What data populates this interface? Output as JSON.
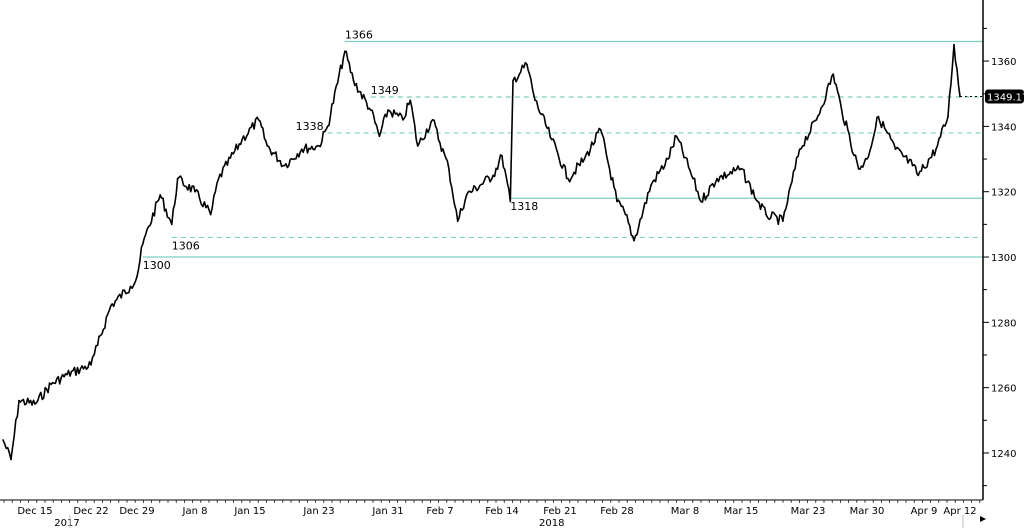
{
  "chart_data": {
    "type": "line",
    "title": "",
    "xlabel": "",
    "ylabel": "",
    "ylim": [
      1225.6,
      1378.7
    ],
    "y_ticks": [
      1240,
      1260,
      1280,
      1300,
      1320,
      1340,
      1360
    ],
    "y_axis_side": "right",
    "grid": false,
    "x_ticks": [
      {
        "label": "Dec 15",
        "date": "2017-12-15"
      },
      {
        "label": "Dec 22",
        "date": "2017-12-22"
      },
      {
        "label": "Dec 29",
        "date": "2017-12-29"
      },
      {
        "label": "Jan 8",
        "date": "2018-01-08"
      },
      {
        "label": "Jan 15",
        "date": "2018-01-15"
      },
      {
        "label": "Jan 23",
        "date": "2018-01-23"
      },
      {
        "label": "Jan 31",
        "date": "2018-01-31"
      },
      {
        "label": "Feb 7",
        "date": "2018-02-07"
      },
      {
        "label": "Feb 14",
        "date": "2018-02-14"
      },
      {
        "label": "Feb 21",
        "date": "2018-02-21"
      },
      {
        "label": "Feb 28",
        "date": "2018-02-28"
      },
      {
        "label": "Mar 8",
        "date": "2018-03-08"
      },
      {
        "label": "Mar 15",
        "date": "2018-03-15"
      },
      {
        "label": "Mar 23",
        "date": "2018-03-23"
      },
      {
        "label": "Mar 30",
        "date": "2018-03-30"
      },
      {
        "label": "Apr 9",
        "date": "2018-04-09"
      },
      {
        "label": "Apr 12",
        "date": "2018-04-12"
      }
    ],
    "year_labels": [
      {
        "label": "2017",
        "date": "2017-12-19"
      },
      {
        "label": "2018",
        "date": "2018-02-20"
      }
    ],
    "last_value_label": "1349.17",
    "line_color": "#000000",
    "level_color": "#7fcfc0",
    "levels": [
      {
        "value": 1366,
        "label": "1366",
        "style": "solid",
        "from": "2018-01-26"
      },
      {
        "value": 1349,
        "label": "1349",
        "style": "dashed",
        "from": "2018-01-29"
      },
      {
        "value": 1338,
        "label": "1338",
        "style": "dashed",
        "from": "2018-01-24"
      },
      {
        "value": 1318,
        "label": "1318",
        "style": "solid",
        "from": "2018-02-15"
      },
      {
        "value": 1306,
        "label": "1306",
        "style": "dashed",
        "from": "2018-01-04"
      },
      {
        "value": 1300,
        "label": "1300",
        "style": "solid",
        "from": "2017-12-30"
      }
    ],
    "series": [
      {
        "x": "2017-12-11",
        "y": 1244
      },
      {
        "x": "2017-12-12",
        "y": 1238
      },
      {
        "x": "2017-12-13",
        "y": 1256
      },
      {
        "x": "2017-12-15",
        "y": 1255
      },
      {
        "x": "2017-12-17",
        "y": 1261
      },
      {
        "x": "2017-12-19",
        "y": 1264
      },
      {
        "x": "2017-12-22",
        "y": 1267
      },
      {
        "x": "2017-12-23",
        "y": 1273
      },
      {
        "x": "2017-12-25",
        "y": 1285
      },
      {
        "x": "2017-12-28",
        "y": 1291
      },
      {
        "x": "2017-12-29",
        "y": 1294
      },
      {
        "x": "2017-12-30",
        "y": 1304
      },
      {
        "x": "2018-01-02",
        "y": 1319
      },
      {
        "x": "2018-01-04",
        "y": 1310
      },
      {
        "x": "2018-01-05",
        "y": 1324
      },
      {
        "x": "2018-01-08",
        "y": 1320
      },
      {
        "x": "2018-01-10",
        "y": 1313
      },
      {
        "x": "2018-01-11",
        "y": 1324
      },
      {
        "x": "2018-01-14",
        "y": 1336
      },
      {
        "x": "2018-01-16",
        "y": 1342
      },
      {
        "x": "2018-01-17",
        "y": 1334
      },
      {
        "x": "2018-01-19",
        "y": 1328
      },
      {
        "x": "2018-01-21",
        "y": 1333
      },
      {
        "x": "2018-01-23",
        "y": 1334
      },
      {
        "x": "2018-01-24",
        "y": 1340
      },
      {
        "x": "2018-01-26",
        "y": 1363
      },
      {
        "x": "2018-01-27",
        "y": 1354
      },
      {
        "x": "2018-01-29",
        "y": 1345
      },
      {
        "x": "2018-01-30",
        "y": 1337
      },
      {
        "x": "2018-01-31",
        "y": 1345
      },
      {
        "x": "2018-02-02",
        "y": 1342
      },
      {
        "x": "2018-02-03",
        "y": 1348
      },
      {
        "x": "2018-02-04",
        "y": 1334
      },
      {
        "x": "2018-02-06",
        "y": 1342
      },
      {
        "x": "2018-02-08",
        "y": 1327
      },
      {
        "x": "2018-02-09",
        "y": 1311
      },
      {
        "x": "2018-02-10",
        "y": 1319
      },
      {
        "x": "2018-02-13",
        "y": 1325
      },
      {
        "x": "2018-02-14",
        "y": 1331
      },
      {
        "x": "2018-02-15",
        "y": 1317
      },
      {
        "x": "2018-02-15T08:00",
        "y": 1354
      },
      {
        "x": "2018-02-17",
        "y": 1359
      },
      {
        "x": "2018-02-18",
        "y": 1348
      },
      {
        "x": "2018-02-20",
        "y": 1336
      },
      {
        "x": "2018-02-22",
        "y": 1324
      },
      {
        "x": "2018-02-24",
        "y": 1330
      },
      {
        "x": "2018-02-26",
        "y": 1339
      },
      {
        "x": "2018-02-28",
        "y": 1317
      },
      {
        "x": "2018-03-01",
        "y": 1313
      },
      {
        "x": "2018-03-02",
        "y": 1305
      },
      {
        "x": "2018-03-04",
        "y": 1322
      },
      {
        "x": "2018-03-06",
        "y": 1330
      },
      {
        "x": "2018-03-07",
        "y": 1337
      },
      {
        "x": "2018-03-09",
        "y": 1324
      },
      {
        "x": "2018-03-10",
        "y": 1317
      },
      {
        "x": "2018-03-12",
        "y": 1324
      },
      {
        "x": "2018-03-15",
        "y": 1327
      },
      {
        "x": "2018-03-17",
        "y": 1317
      },
      {
        "x": "2018-03-18",
        "y": 1313
      },
      {
        "x": "2018-03-20",
        "y": 1311
      },
      {
        "x": "2018-03-22",
        "y": 1333
      },
      {
        "x": "2018-03-24",
        "y": 1342
      },
      {
        "x": "2018-03-26",
        "y": 1356
      },
      {
        "x": "2018-03-27",
        "y": 1345
      },
      {
        "x": "2018-03-29",
        "y": 1327
      },
      {
        "x": "2018-03-30",
        "y": 1330
      },
      {
        "x": "2018-04-01",
        "y": 1343
      },
      {
        "x": "2018-04-04",
        "y": 1333
      },
      {
        "x": "2018-04-07",
        "y": 1328
      },
      {
        "x": "2018-04-08",
        "y": 1325
      },
      {
        "x": "2018-04-10",
        "y": 1333
      },
      {
        "x": "2018-04-11",
        "y": 1343
      },
      {
        "x": "2018-04-11T12:00",
        "y": 1365
      },
      {
        "x": "2018-04-12",
        "y": 1349.17
      }
    ]
  }
}
